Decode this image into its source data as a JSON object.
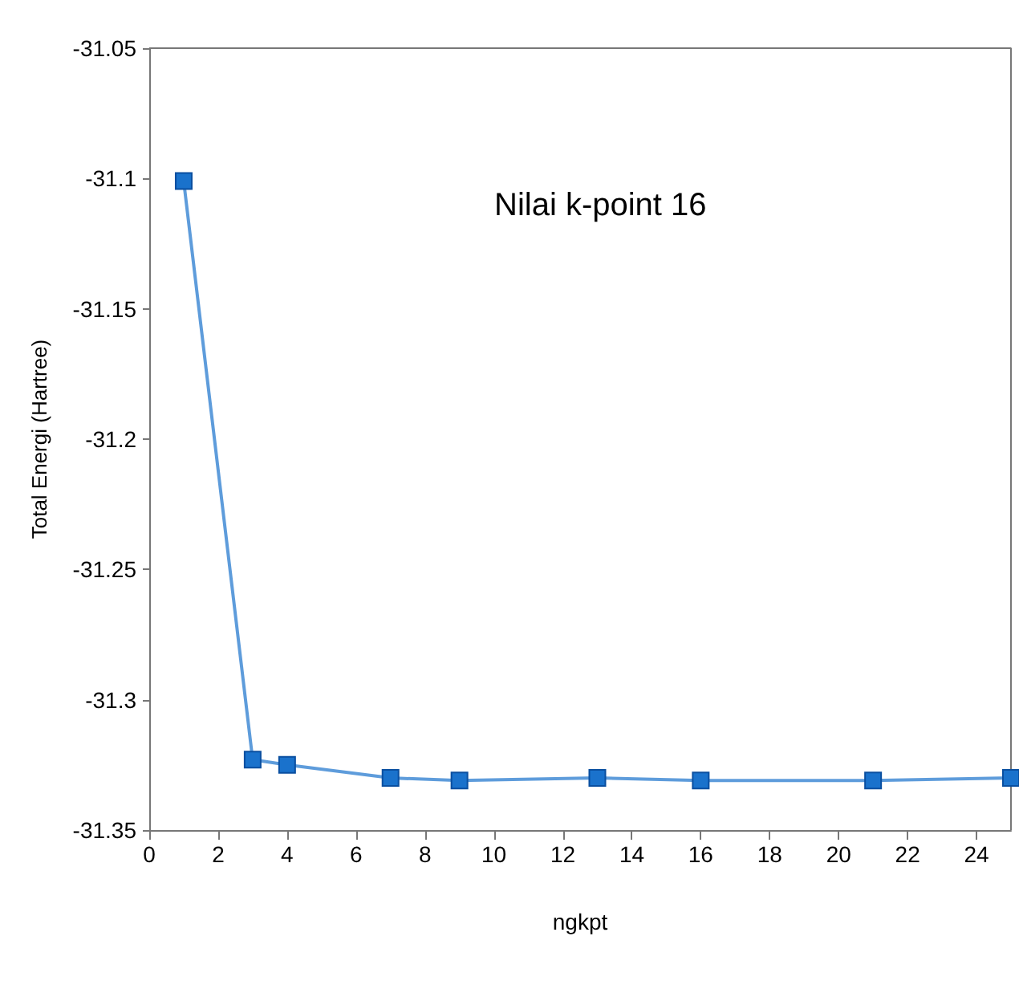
{
  "chart_data": {
    "type": "line",
    "xlabel": "ngkpt",
    "ylabel": "Total Energi (Hartree)",
    "annotations": [
      "Nilai k-point 16"
    ],
    "x": [
      1,
      3,
      4,
      7,
      9,
      13,
      16,
      21,
      25
    ],
    "series": [
      {
        "color": "#1a72cc",
        "values": [
          -31.101,
          -31.323,
          -31.325,
          -31.33,
          -31.331,
          -31.33,
          -31.331,
          -31.331,
          -31.33
        ]
      }
    ],
    "xlim": [
      0,
      25
    ],
    "xticks": [
      0,
      2,
      4,
      6,
      8,
      10,
      12,
      14,
      16,
      18,
      20,
      22,
      24
    ],
    "ylim": [
      -31.35,
      -31.05
    ],
    "yticks": [
      -31.35,
      -31.3,
      -31.25,
      -31.2,
      -31.15,
      -31.1,
      -31.05
    ],
    "grid": false,
    "marker": "square",
    "line_style": "solid"
  }
}
